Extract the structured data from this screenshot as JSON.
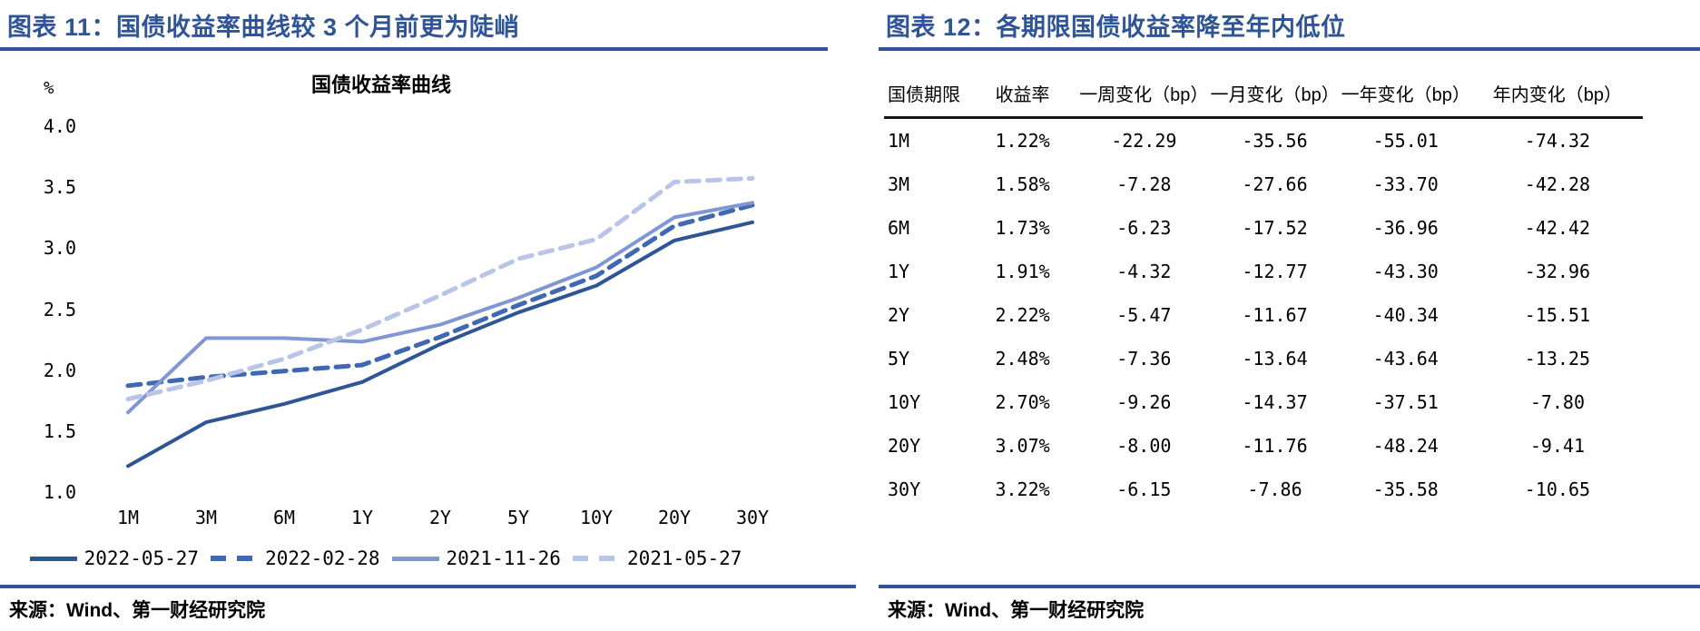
{
  "panels": {
    "left": {
      "title": "图表 11：国债收益率曲线较 3 个月前更为陡峭",
      "source": "来源：Wind、第一财经研究院"
    },
    "right": {
      "title": "图表 12：各期限国债收益率降至年内低位",
      "source": "来源：Wind、第一财经研究院"
    }
  },
  "chart_data": {
    "type": "line",
    "title": "国债收益率曲线",
    "unit_label": "%",
    "categories": [
      "1M",
      "3M",
      "6M",
      "1Y",
      "2Y",
      "5Y",
      "10Y",
      "20Y",
      "30Y"
    ],
    "y_ticks": [
      "4.0",
      "3.5",
      "3.0",
      "2.5",
      "2.0",
      "1.5",
      "1.0"
    ],
    "ylim": [
      1.0,
      4.0
    ],
    "grid": false,
    "legend_position": "bottom",
    "series": [
      {
        "name": "2022-05-27",
        "style": "solid",
        "color": "#2E5596",
        "values": [
          1.22,
          1.58,
          1.73,
          1.91,
          2.22,
          2.48,
          2.7,
          3.07,
          3.22
        ]
      },
      {
        "name": "2022-02-28",
        "style": "dashed",
        "color": "#3E68B2",
        "values": [
          1.88,
          1.95,
          2.0,
          2.05,
          2.28,
          2.54,
          2.78,
          3.19,
          3.36
        ]
      },
      {
        "name": "2021-11-26",
        "style": "solid",
        "color": "#8097D3",
        "values": [
          1.66,
          2.27,
          2.27,
          2.24,
          2.38,
          2.6,
          2.85,
          3.26,
          3.38
        ]
      },
      {
        "name": "2021-05-27",
        "style": "dashed",
        "color": "#B9C5E8",
        "values": [
          1.77,
          1.92,
          2.1,
          2.34,
          2.62,
          2.92,
          3.08,
          3.55,
          3.58
        ]
      }
    ]
  },
  "table": {
    "headers": [
      "国债期限",
      "收益率",
      "一周变化（bp）",
      "一月变化（bp）",
      "一年变化（bp）",
      "年内变化（bp）"
    ],
    "rows": [
      [
        "1M",
        "1.22%",
        "-22.29",
        "-35.56",
        "-55.01",
        "-74.32"
      ],
      [
        "3M",
        "1.58%",
        "-7.28",
        "-27.66",
        "-33.70",
        "-42.28"
      ],
      [
        "6M",
        "1.73%",
        "-6.23",
        "-17.52",
        "-36.96",
        "-42.42"
      ],
      [
        "1Y",
        "1.91%",
        "-4.32",
        "-12.77",
        "-43.30",
        "-32.96"
      ],
      [
        "2Y",
        "2.22%",
        "-5.47",
        "-11.67",
        "-40.34",
        "-15.51"
      ],
      [
        "5Y",
        "2.48%",
        "-7.36",
        "-13.64",
        "-43.64",
        "-13.25"
      ],
      [
        "10Y",
        "2.70%",
        "-9.26",
        "-14.37",
        "-37.51",
        "-7.80"
      ],
      [
        "20Y",
        "3.07%",
        "-8.00",
        "-11.76",
        "-48.24",
        "-9.41"
      ],
      [
        "30Y",
        "3.22%",
        "-6.15",
        "-7.86",
        "-35.58",
        "-10.65"
      ]
    ]
  },
  "colors": {
    "accent": "#2F5597",
    "header_rule": "#141414",
    "text": "#000000"
  }
}
